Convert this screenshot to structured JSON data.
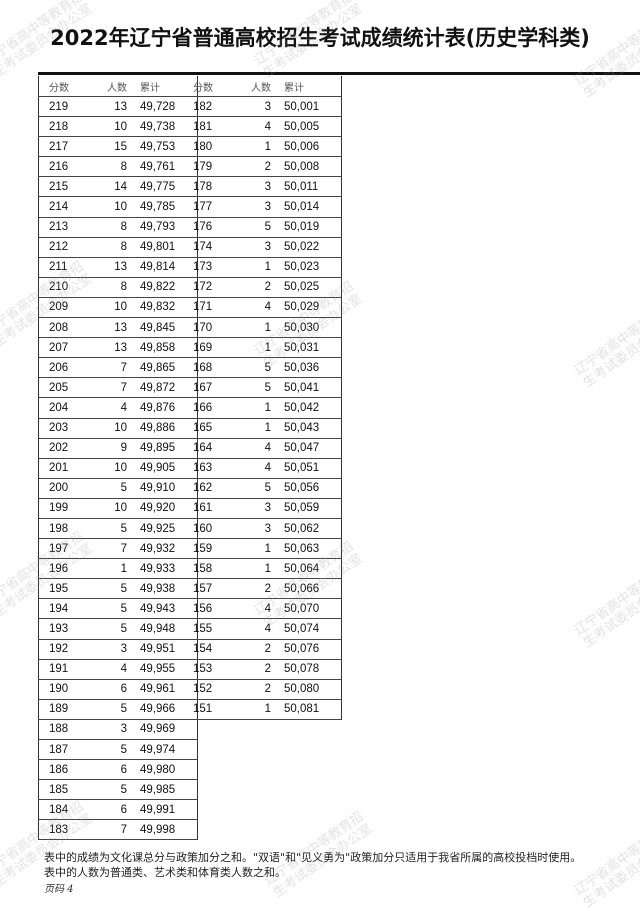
{
  "title": "2022年辽宁省普通高校招生考试成绩统计表(历史学科类)",
  "table": {
    "headers": [
      "分数",
      "人数",
      "累计"
    ],
    "left_rows": [
      [
        "219",
        "13",
        "49,728"
      ],
      [
        "218",
        "10",
        "49,738"
      ],
      [
        "217",
        "15",
        "49,753"
      ],
      [
        "216",
        "8",
        "49,761"
      ],
      [
        "215",
        "14",
        "49,775"
      ],
      [
        "214",
        "10",
        "49,785"
      ],
      [
        "213",
        "8",
        "49,793"
      ],
      [
        "212",
        "8",
        "49,801"
      ],
      [
        "211",
        "13",
        "49,814"
      ],
      [
        "210",
        "8",
        "49,822"
      ],
      [
        "209",
        "10",
        "49,832"
      ],
      [
        "208",
        "13",
        "49,845"
      ],
      [
        "207",
        "13",
        "49,858"
      ],
      [
        "206",
        "7",
        "49,865"
      ],
      [
        "205",
        "7",
        "49,872"
      ],
      [
        "204",
        "4",
        "49,876"
      ],
      [
        "203",
        "10",
        "49,886"
      ],
      [
        "202",
        "9",
        "49,895"
      ],
      [
        "201",
        "10",
        "49,905"
      ],
      [
        "200",
        "5",
        "49,910"
      ],
      [
        "199",
        "10",
        "49,920"
      ],
      [
        "198",
        "5",
        "49,925"
      ],
      [
        "197",
        "7",
        "49,932"
      ],
      [
        "196",
        "1",
        "49,933"
      ],
      [
        "195",
        "5",
        "49,938"
      ],
      [
        "194",
        "5",
        "49,943"
      ],
      [
        "193",
        "5",
        "49,948"
      ],
      [
        "192",
        "3",
        "49,951"
      ],
      [
        "191",
        "4",
        "49,955"
      ],
      [
        "190",
        "6",
        "49,961"
      ],
      [
        "189",
        "5",
        "49,966"
      ],
      [
        "188",
        "3",
        "49,969"
      ],
      [
        "187",
        "5",
        "49,974"
      ],
      [
        "186",
        "6",
        "49,980"
      ],
      [
        "185",
        "5",
        "49,985"
      ],
      [
        "184",
        "6",
        "49,991"
      ],
      [
        "183",
        "7",
        "49,998"
      ]
    ],
    "right_rows": [
      [
        "182",
        "3",
        "50,001"
      ],
      [
        "181",
        "4",
        "50,005"
      ],
      [
        "180",
        "1",
        "50,006"
      ],
      [
        "179",
        "2",
        "50,008"
      ],
      [
        "178",
        "3",
        "50,011"
      ],
      [
        "177",
        "3",
        "50,014"
      ],
      [
        "176",
        "5",
        "50,019"
      ],
      [
        "174",
        "3",
        "50,022"
      ],
      [
        "173",
        "1",
        "50,023"
      ],
      [
        "172",
        "2",
        "50,025"
      ],
      [
        "171",
        "4",
        "50,029"
      ],
      [
        "170",
        "1",
        "50,030"
      ],
      [
        "169",
        "1",
        "50,031"
      ],
      [
        "168",
        "5",
        "50,036"
      ],
      [
        "167",
        "5",
        "50,041"
      ],
      [
        "166",
        "1",
        "50,042"
      ],
      [
        "165",
        "1",
        "50,043"
      ],
      [
        "164",
        "4",
        "50,047"
      ],
      [
        "163",
        "4",
        "50,051"
      ],
      [
        "162",
        "5",
        "50,056"
      ],
      [
        "161",
        "3",
        "50,059"
      ],
      [
        "160",
        "3",
        "50,062"
      ],
      [
        "159",
        "1",
        "50,063"
      ],
      [
        "158",
        "1",
        "50,064"
      ],
      [
        "157",
        "2",
        "50,066"
      ],
      [
        "156",
        "4",
        "50,070"
      ],
      [
        "155",
        "4",
        "50,074"
      ],
      [
        "154",
        "2",
        "50,076"
      ],
      [
        "153",
        "2",
        "50,078"
      ],
      [
        "152",
        "2",
        "50,080"
      ],
      [
        "151",
        "1",
        "50,081"
      ]
    ]
  },
  "notes": [
    "表中的成绩为文化课总分与政策加分之和。\"双语\"和\"见义勇为\"政策加分只适用于我省所属的高校投档时使用。",
    "表中的人数为普通类、艺术类和体育类人数之和。"
  ],
  "page_label": "页码 4",
  "watermark": "辽宁省高中等教育招\n生考试委员会办公室"
}
